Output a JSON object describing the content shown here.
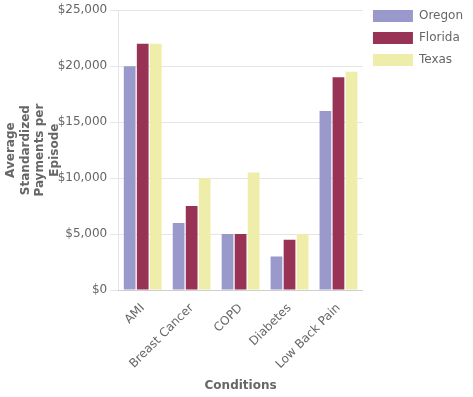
{
  "chart_data": {
    "type": "bar",
    "categories": [
      "AMI",
      "Breast Cancer",
      "COPD",
      "Diabetes",
      "Low Back Pain"
    ],
    "series": [
      {
        "name": "Oregon",
        "color": "#9999cc",
        "values": [
          20000,
          6000,
          5000,
          3000,
          16000
        ]
      },
      {
        "name": "Florida",
        "color": "#993355",
        "values": [
          22000,
          7500,
          5000,
          4500,
          19000
        ]
      },
      {
        "name": "Texas",
        "color": "#eeeeaa",
        "values": [
          22000,
          10000,
          10500,
          5000,
          19500
        ]
      }
    ],
    "xlabel": "Conditions",
    "ylabel": "Average\nStandardized\nPayments per\nEpisode",
    "ylim": [
      0,
      25000
    ],
    "yticks": [
      {
        "value": 0,
        "label": "$0"
      },
      {
        "value": 5000,
        "label": "$5,000"
      },
      {
        "value": 10000,
        "label": "$10,000"
      },
      {
        "value": 15000,
        "label": "$15,000"
      },
      {
        "value": 20000,
        "label": "$20,000"
      },
      {
        "value": 25000,
        "label": "$25,000"
      }
    ],
    "grid": true,
    "legend": "right"
  }
}
